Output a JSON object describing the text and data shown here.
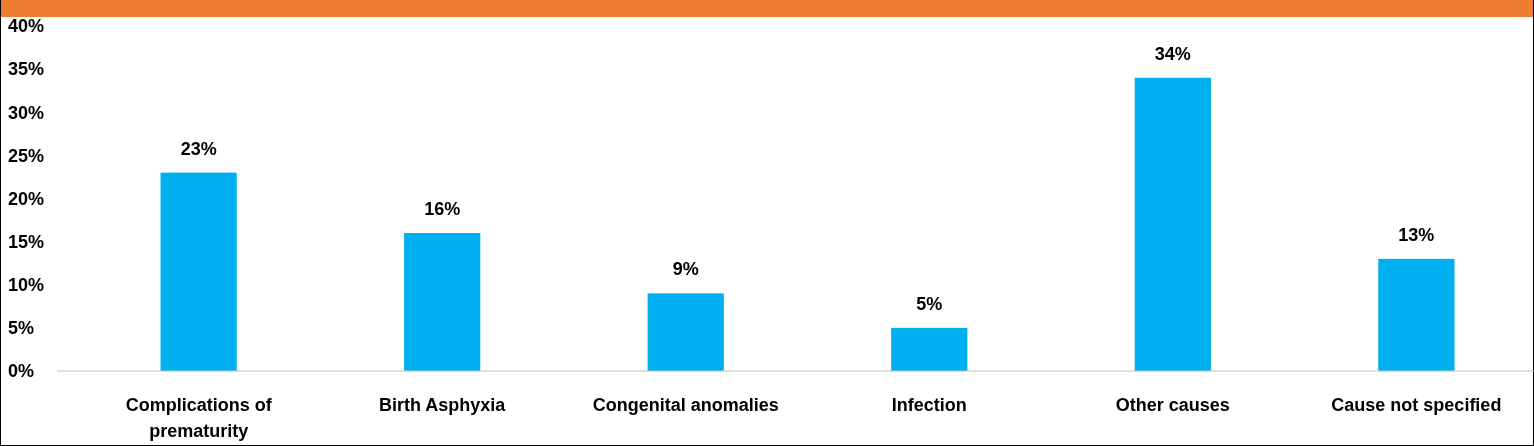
{
  "chart_data": {
    "type": "bar",
    "categories": [
      "Complications of prematurity",
      "Birth Asphyxia",
      "Congenital anomalies",
      "Infection",
      "Other causes",
      "Cause not specified"
    ],
    "values": [
      23,
      16,
      9,
      5,
      34,
      13
    ],
    "color": "#00b0f0",
    "value_labels": [
      "23%",
      "16%",
      "9%",
      "5%",
      "34%",
      "13%"
    ],
    "ylim": [
      0,
      40
    ],
    "yticks": [
      {
        "value": 0,
        "label": "0%"
      },
      {
        "value": 5,
        "label": "5%"
      },
      {
        "value": 10,
        "label": "10%"
      },
      {
        "value": 15,
        "label": "15%"
      },
      {
        "value": 20,
        "label": "20%"
      },
      {
        "value": 25,
        "label": "25%"
      },
      {
        "value": 30,
        "label": "30%"
      },
      {
        "value": 35,
        "label": "35%"
      },
      {
        "value": 40,
        "label": "40%"
      }
    ],
    "grid": false
  }
}
